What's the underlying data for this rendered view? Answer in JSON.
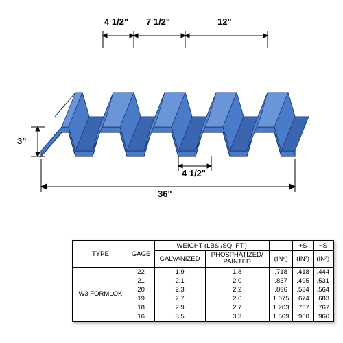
{
  "diagram": {
    "dimensions": {
      "top_left": "4 1/2\"",
      "top_mid": "7 1/2\"",
      "top_right": "12\"",
      "height": "3\"",
      "bottom_flange": "4 1/2\"",
      "total_width": "36\""
    },
    "colors": {
      "deck_fill": "#4a7bc8",
      "deck_stroke": "#1a3a7a",
      "dim_line": "#000000"
    }
  },
  "table": {
    "title_group": "WEIGHT (LBS./SQ. FT.)",
    "columns": {
      "type": "TYPE",
      "gage": "GAGE",
      "galv": "GALVANIZED",
      "phos": "PHOSPHATIZED/\nPAINTED",
      "I": "I",
      "plusS": "+S",
      "minusS": "−S",
      "I_unit": "(IN⁴)",
      "S_unit": "(IN³)",
      "S_unit2": "(IN³)"
    },
    "type_label": "W3 FORMLOK",
    "rows": [
      {
        "gage": "22",
        "galv": "1.9",
        "phos": "1.8",
        "I": ".718",
        "pS": ".418",
        "mS": ".444"
      },
      {
        "gage": "21",
        "galv": "2.1",
        "phos": "2.0",
        "I": ".837",
        "pS": ".495",
        "mS": ".531"
      },
      {
        "gage": "20",
        "galv": "2.3",
        "phos": "2.2",
        "I": ".896",
        "pS": ".534",
        "mS": ".564"
      },
      {
        "gage": "19",
        "galv": "2.7",
        "phos": "2.6",
        "I": "1.075",
        "pS": ".674",
        "mS": ".683"
      },
      {
        "gage": "18",
        "galv": "2.9",
        "phos": "2.7",
        "I": "1.203",
        "pS": ".767",
        "mS": ".767"
      },
      {
        "gage": "16",
        "galv": "3.5",
        "phos": "3.3",
        "I": "1.509",
        "pS": ".960",
        "mS": ".960"
      }
    ]
  }
}
